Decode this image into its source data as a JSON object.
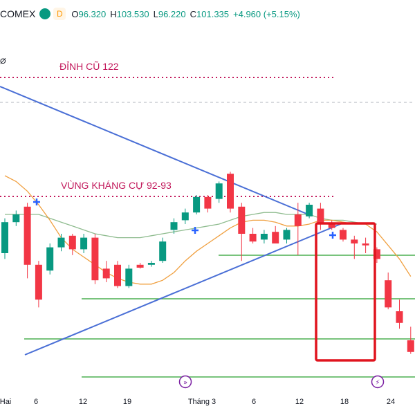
{
  "header": {
    "symbol": "COMEX",
    "interval": "D",
    "o_label": "O",
    "o_value": "96.320",
    "h_label": "H",
    "h_value": "103.530",
    "l_label": "L",
    "l_value": "96.220",
    "c_label": "C",
    "c_value": "101.335",
    "change": "+4.960 (+5.15%)",
    "left_mark": "Ø"
  },
  "colors": {
    "up": "#089981",
    "down": "#f23645",
    "trendline": "#4a6fd6",
    "ma_fast": "#f0a040",
    "ma_slow": "#8fbc8f",
    "support": "#4caf50",
    "resistance_dotted": "#c2185b",
    "highlight_box": "#e0141e",
    "cursor_plus": "#2962ff",
    "x_axis_icon": "#7b1fa2"
  },
  "chart_data": {
    "type": "candlestick",
    "x_tick_labels": [
      "Hai",
      "6",
      "12",
      "19",
      "Tháng 3",
      "6",
      "12",
      "18",
      "24"
    ],
    "annotations": {
      "old_peak": "ĐỈNH CŨ 122",
      "resistance_zone": "VÙNG KHÁNG CỰ 92-93"
    },
    "candles": [
      {
        "o": 0.3,
        "h": 0.48,
        "l": 0.27,
        "c": 0.46
      },
      {
        "o": 0.46,
        "h": 0.52,
        "l": 0.44,
        "c": 0.5
      },
      {
        "o": 0.54,
        "h": 0.56,
        "l": 0.17,
        "c": 0.24
      },
      {
        "o": 0.24,
        "h": 0.26,
        "l": 0.02,
        "c": 0.06
      },
      {
        "o": 0.21,
        "h": 0.35,
        "l": 0.19,
        "c": 0.33
      },
      {
        "o": 0.33,
        "h": 0.4,
        "l": 0.31,
        "c": 0.38
      },
      {
        "o": 0.39,
        "h": 0.4,
        "l": 0.29,
        "c": 0.32
      },
      {
        "o": 0.32,
        "h": 0.4,
        "l": 0.3,
        "c": 0.38
      },
      {
        "o": 0.38,
        "h": 0.4,
        "l": 0.14,
        "c": 0.16
      },
      {
        "o": 0.22,
        "h": 0.26,
        "l": 0.15,
        "c": 0.17
      },
      {
        "o": 0.24,
        "h": 0.26,
        "l": 0.12,
        "c": 0.13
      },
      {
        "o": 0.13,
        "h": 0.24,
        "l": 0.12,
        "c": 0.22
      },
      {
        "o": 0.24,
        "h": 0.25,
        "l": 0.22,
        "c": 0.225
      },
      {
        "o": 0.24,
        "h": 0.26,
        "l": 0.23,
        "c": 0.25
      },
      {
        "o": 0.26,
        "h": 0.38,
        "l": 0.25,
        "c": 0.36
      },
      {
        "o": 0.42,
        "h": 0.48,
        "l": 0.4,
        "c": 0.46
      },
      {
        "o": 0.47,
        "h": 0.53,
        "l": 0.45,
        "c": 0.51
      },
      {
        "o": 0.51,
        "h": 0.6,
        "l": 0.5,
        "c": 0.59
      },
      {
        "o": 0.59,
        "h": 0.6,
        "l": 0.51,
        "c": 0.53
      },
      {
        "o": 0.58,
        "h": 0.67,
        "l": 0.56,
        "c": 0.66
      },
      {
        "o": 0.71,
        "h": 0.72,
        "l": 0.51,
        "c": 0.53
      },
      {
        "o": 0.54,
        "h": 0.56,
        "l": 0.26,
        "c": 0.4
      },
      {
        "o": 0.4,
        "h": 0.43,
        "l": 0.35,
        "c": 0.36
      },
      {
        "o": 0.37,
        "h": 0.42,
        "l": 0.35,
        "c": 0.4
      },
      {
        "o": 0.41,
        "h": 0.44,
        "l": 0.35,
        "c": 0.35
      },
      {
        "o": 0.37,
        "h": 0.43,
        "l": 0.35,
        "c": 0.42
      },
      {
        "o": 0.5,
        "h": 0.56,
        "l": 0.29,
        "c": 0.44
      },
      {
        "o": 0.49,
        "h": 0.56,
        "l": 0.48,
        "c": 0.55
      },
      {
        "o": 0.53,
        "h": 0.56,
        "l": 0.42,
        "c": 0.45
      },
      {
        "o": 0.45,
        "h": 0.47,
        "l": 0.42,
        "c": 0.43
      },
      {
        "o": 0.42,
        "h": 0.43,
        "l": 0.36,
        "c": 0.37
      },
      {
        "o": 0.37,
        "h": 0.39,
        "l": 0.27,
        "c": 0.35
      },
      {
        "o": 0.35,
        "h": 0.38,
        "l": 0.3,
        "c": 0.34
      },
      {
        "o": 0.32,
        "h": 0.33,
        "l": 0.25,
        "c": 0.27
      },
      {
        "o": 0.16,
        "h": 0.2,
        "l": 0.01,
        "c": 0.02
      },
      {
        "o": 0.0,
        "h": 0.06,
        "l": -0.09,
        "c": -0.06
      },
      {
        "o": -0.15,
        "h": -0.08,
        "l": -0.22,
        "c": -0.21
      }
    ],
    "ma_fast": [
      0.7,
      0.67,
      0.62,
      0.55,
      0.47,
      0.38,
      0.32,
      0.28,
      0.24,
      0.2,
      0.17,
      0.15,
      0.14,
      0.14,
      0.16,
      0.2,
      0.26,
      0.31,
      0.35,
      0.39,
      0.43,
      0.46,
      0.47,
      0.47,
      0.46,
      0.44,
      0.44,
      0.45,
      0.47,
      0.47,
      0.46,
      0.45,
      0.45,
      0.41,
      0.34,
      0.27,
      0.18
    ],
    "ma_slow": [
      0.5,
      0.5,
      0.5,
      0.5,
      0.48,
      0.46,
      0.44,
      0.42,
      0.4,
      0.39,
      0.38,
      0.38,
      0.38,
      0.39,
      0.4,
      0.41,
      0.42,
      0.43,
      0.44,
      0.45,
      0.47,
      0.49,
      0.5,
      0.51,
      0.51,
      0.5,
      0.5,
      0.5,
      0.48,
      0.47,
      0.47,
      0.46,
      0.45,
      0.45
    ]
  }
}
